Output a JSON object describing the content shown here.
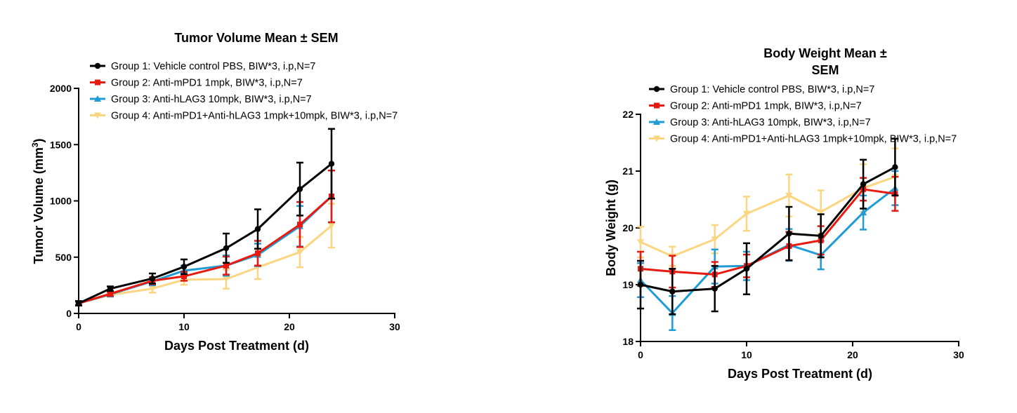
{
  "chart_data": [
    {
      "type": "line",
      "title": "Tumor Volume Mean ± SEM",
      "xlabel": "Days Post Treatment (d)",
      "ylabel_main": "Tumor Volume (mm",
      "ylabel_sup": "3",
      "ylabel_close": ")",
      "xlim": [
        0,
        30
      ],
      "ylim": [
        0,
        2000
      ],
      "xticks": [
        0,
        10,
        20,
        30
      ],
      "yticks": [
        0,
        500,
        1000,
        1500,
        2000
      ],
      "x": [
        0,
        3,
        7,
        10,
        14,
        17,
        21,
        24
      ],
      "series": [
        {
          "name": "Group 1: Vehicle control PBS, BIW*3, i.p,N=7",
          "color": "#000000",
          "marker": "circle",
          "values": [
            90,
            220,
            310,
            415,
            580,
            750,
            1105,
            1330
          ],
          "errors": [
            20,
            20,
            45,
            65,
            130,
            175,
            235,
            310
          ]
        },
        {
          "name": "Group 2: Anti-mPD1 1mpk, BIW*3, i.p,N=7",
          "color": "#e8190f",
          "marker": "square",
          "values": [
            90,
            175,
            290,
            330,
            425,
            535,
            790,
            1040
          ],
          "errors": [
            15,
            20,
            30,
            40,
            80,
            110,
            200,
            230
          ]
        },
        {
          "name": "Group 3: Anti-hLAG3 10mpk, BIW*3, i.p,N=7",
          "color": "#1f9bd6",
          "marker": "triangle",
          "values": [
            90,
            170,
            285,
            380,
            425,
            520,
            775,
            1040
          ],
          "errors": [
            15,
            20,
            35,
            45,
            90,
            100,
            180,
            230
          ]
        },
        {
          "name": "Group 4: Anti-mPD1+Anti-hLAG3 1mpk+10mpk, BIW*3, i.p,N=7",
          "color": "#fcd581",
          "marker": "triangle-down",
          "values": [
            90,
            165,
            220,
            300,
            305,
            410,
            545,
            780
          ],
          "errors": [
            15,
            15,
            35,
            45,
            85,
            105,
            135,
            195
          ]
        }
      ]
    },
    {
      "type": "line",
      "title_line1": "Body Weight  Mean ±",
      "title_line2": "SEM",
      "xlabel": "Days Post Treatment (d)",
      "ylabel": "Body Weight (g)",
      "xlim": [
        0,
        30
      ],
      "ylim": [
        18,
        22
      ],
      "xticks": [
        0,
        10,
        20,
        30
      ],
      "yticks": [
        18,
        19,
        20,
        21,
        22
      ],
      "x": [
        0,
        3,
        7,
        10,
        14,
        17,
        21,
        24
      ],
      "series": [
        {
          "name": "Group 1: Vehicle control PBS, BIW*3, i.p,N=7",
          "color": "#000000",
          "marker": "circle",
          "values": [
            19.0,
            18.88,
            18.93,
            19.28,
            19.9,
            19.86,
            20.77,
            21.07
          ],
          "errors": [
            0.42,
            0.4,
            0.4,
            0.45,
            0.47,
            0.38,
            0.43,
            0.5
          ]
        },
        {
          "name": "Group 2: Anti-mPD1 1mpk, BIW*3, i.p,N=7",
          "color": "#e8190f",
          "marker": "square",
          "values": [
            19.28,
            19.23,
            19.18,
            19.33,
            19.68,
            19.78,
            20.68,
            20.6
          ],
          "errors": [
            0.3,
            0.28,
            0.22,
            0.2,
            0.25,
            0.25,
            0.2,
            0.3
          ]
        },
        {
          "name": "Group 3: Anti-hLAG3 10mpk, BIW*3, i.p,N=7",
          "color": "#1f9bd6",
          "marker": "triangle",
          "values": [
            19.08,
            18.5,
            19.32,
            19.33,
            19.7,
            19.52,
            20.27,
            20.7
          ],
          "errors": [
            0.3,
            0.3,
            0.3,
            0.25,
            0.28,
            0.25,
            0.3,
            0.3
          ]
        },
        {
          "name": "Group 4: Anti-mPD1+Anti-hLAG3 1mpk+10mpk, BIW*3, i.p,N=7",
          "color": "#fcd581",
          "marker": "triangle-down",
          "values": [
            19.75,
            19.5,
            19.8,
            20.25,
            20.57,
            20.28,
            20.7,
            20.9
          ],
          "errors": [
            0.27,
            0.17,
            0.25,
            0.3,
            0.37,
            0.38,
            0.42,
            0.5
          ]
        }
      ]
    }
  ]
}
